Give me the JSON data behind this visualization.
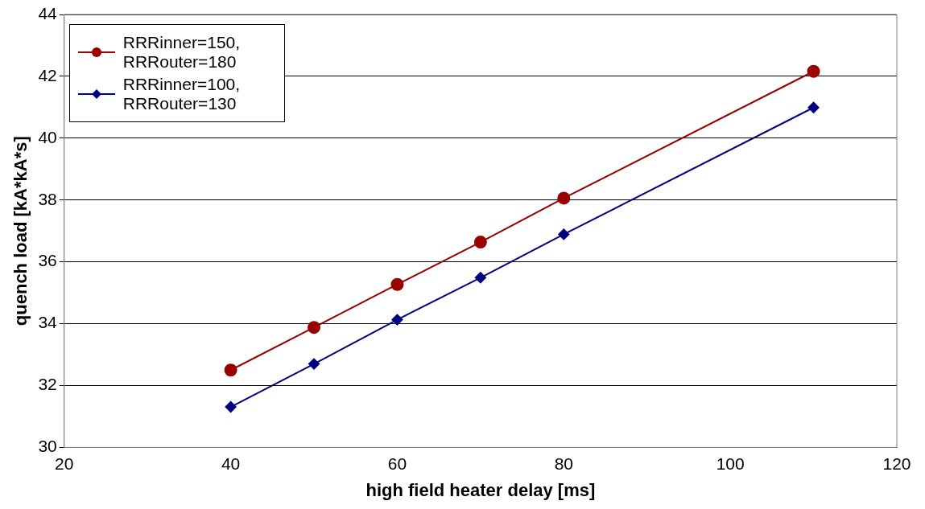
{
  "chart_data": {
    "type": "line",
    "xlabel": "high field heater delay [ms]",
    "ylabel": "quench load [kA*kA*s]",
    "x": [
      40,
      50,
      60,
      70,
      80,
      110
    ],
    "series": [
      {
        "name": "RRRinner=150, RRRouter=180",
        "color": "#990000",
        "marker": "circle",
        "values": [
          32.5,
          33.88,
          35.27,
          36.64,
          38.06,
          42.16
        ]
      },
      {
        "name": "RRRinner=100, RRRouter=130",
        "color": "#000080",
        "marker": "diamond",
        "values": [
          31.31,
          32.7,
          34.13,
          35.49,
          36.89,
          40.99
        ]
      }
    ],
    "xlim": [
      20,
      120
    ],
    "xticks": [
      20,
      40,
      60,
      80,
      100,
      120
    ],
    "ylim": [
      30,
      44
    ],
    "yticks": [
      30,
      32,
      34,
      36,
      38,
      40,
      42,
      44
    ],
    "grid": "y",
    "legend": "top left",
    "line_style": "solid"
  }
}
